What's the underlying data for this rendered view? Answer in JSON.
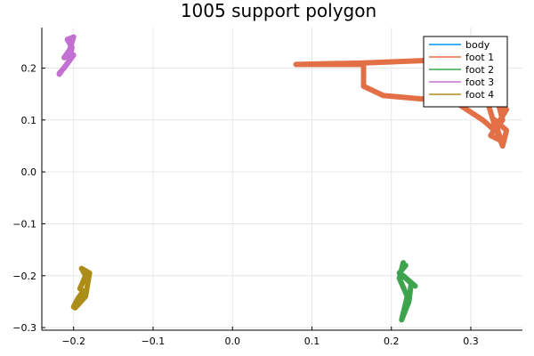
{
  "chart_data": {
    "type": "line",
    "title": "1005 support polygon",
    "xlabel": "",
    "ylabel": "",
    "xlim": [
      -0.24,
      0.365
    ],
    "ylim": [
      -0.305,
      0.278
    ],
    "xticks": [
      -0.2,
      -0.1,
      0.0,
      0.1,
      0.2,
      0.3
    ],
    "xtick_labels": [
      "−0.2",
      "−0.1",
      "0.0",
      "0.1",
      "0.2",
      "0.3"
    ],
    "yticks": [
      -0.3,
      -0.2,
      -0.1,
      0.0,
      0.1,
      0.2
    ],
    "ytick_labels": [
      "−0.3",
      "−0.2",
      "−0.1",
      "0.0",
      "0.1",
      "0.2"
    ],
    "grid": true,
    "legend": "top-right",
    "series": [
      {
        "name": "body",
        "color": "#009AFA",
        "x": [],
        "y": []
      },
      {
        "name": "foot 1",
        "color": "#E26F46",
        "x": [
          0.08,
          0.165,
          0.165,
          0.19,
          0.28,
          0.315,
          0.33,
          0.34,
          0.335,
          0.345,
          0.325,
          0.338,
          0.33,
          0.345,
          0.34,
          0.33,
          0.32,
          0.34,
          0.25,
          0.165,
          0.08
        ],
        "y": [
          0.207,
          0.207,
          0.165,
          0.147,
          0.135,
          0.1,
          0.08,
          0.1,
          0.13,
          0.12,
          0.07,
          0.06,
          0.1,
          0.08,
          0.05,
          0.09,
          0.14,
          0.125,
          0.215,
          0.21,
          0.207
        ]
      },
      {
        "name": "foot 2",
        "color": "#3DA44D",
        "x": [
          0.215,
          0.21,
          0.22,
          0.213,
          0.222,
          0.225,
          0.215,
          0.23,
          0.218,
          0.21,
          0.218
        ],
        "y": [
          -0.175,
          -0.205,
          -0.24,
          -0.285,
          -0.25,
          -0.215,
          -0.2,
          -0.22,
          -0.205,
          -0.195,
          -0.18
        ]
      },
      {
        "name": "foot 3",
        "color": "#C271D2",
        "x": [
          -0.218,
          -0.21,
          -0.205,
          -0.202,
          -0.208,
          -0.2,
          -0.205,
          -0.212,
          -0.2,
          -0.212,
          -0.218
        ],
        "y": [
          0.188,
          0.205,
          0.215,
          0.24,
          0.255,
          0.26,
          0.235,
          0.22,
          0.225,
          0.2,
          0.19
        ]
      },
      {
        "name": "foot 4",
        "color": "#AC8D18",
        "x": [
          -0.198,
          -0.185,
          -0.18,
          -0.19,
          -0.185,
          -0.192,
          -0.188,
          -0.195,
          -0.2,
          -0.193
        ],
        "y": [
          -0.262,
          -0.24,
          -0.195,
          -0.186,
          -0.2,
          -0.225,
          -0.23,
          -0.245,
          -0.26,
          -0.245
        ]
      }
    ]
  }
}
